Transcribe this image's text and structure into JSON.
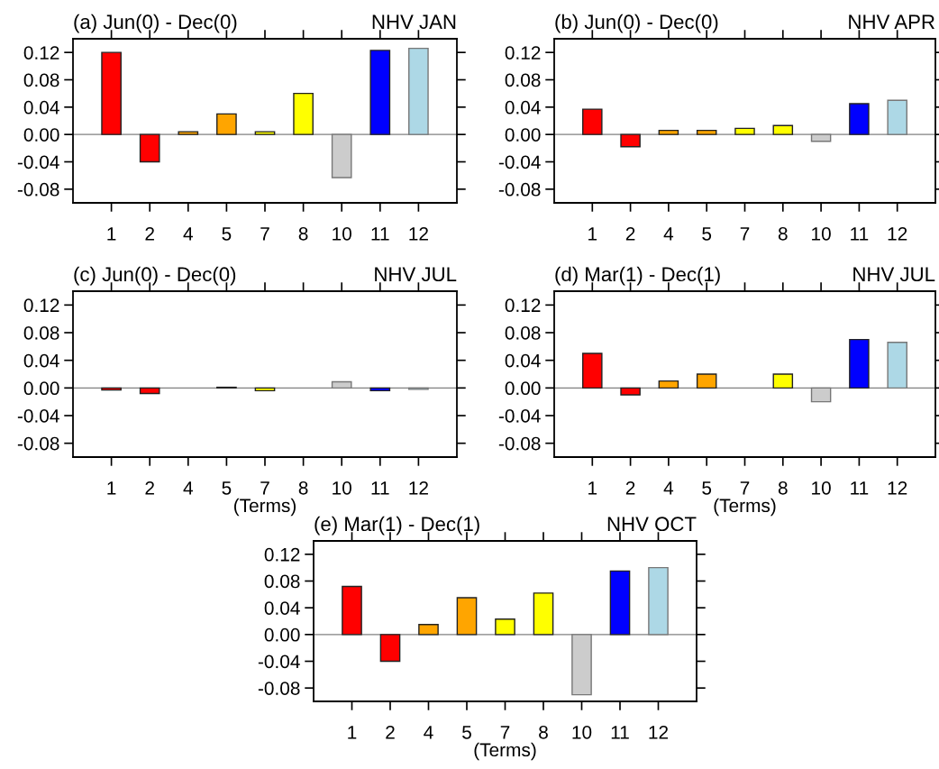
{
  "chart_data": [
    {
      "type": "bar",
      "title": "(a) Jun(0) - Dec(0)",
      "subtitle": "NHV JAN",
      "categories": [
        "1",
        "2",
        "4",
        "5",
        "7",
        "8",
        "10",
        "11",
        "12"
      ],
      "values": [
        0.12,
        -0.04,
        0.004,
        0.03,
        0.004,
        0.06,
        -0.063,
        0.123,
        0.126
      ],
      "colors": [
        "#ff0000",
        "#ff0000",
        "#ffa500",
        "#ffa500",
        "#ffff00",
        "#ffff00",
        "#cccccc",
        "#0000ff",
        "#add8e6"
      ],
      "ylim": [
        -0.1,
        0.14
      ],
      "yticks": [
        {
          "value": -0.08,
          "label": "-0.08"
        },
        {
          "value": -0.04,
          "label": "-0.04"
        },
        {
          "value": 0,
          "label": "0.00"
        },
        {
          "value": 0.04,
          "label": "0.04"
        },
        {
          "value": 0.08,
          "label": "0.08"
        },
        {
          "value": 0.12,
          "label": "0.12"
        }
      ],
      "ref_lines": [
        {
          "axis": "y",
          "value": 0,
          "color": "#808080"
        }
      ]
    },
    {
      "type": "bar",
      "title": "(b) Jun(0) - Dec(0)",
      "subtitle": "NHV APR",
      "categories": [
        "1",
        "2",
        "4",
        "5",
        "7",
        "8",
        "10",
        "11",
        "12"
      ],
      "values": [
        0.037,
        -0.018,
        0.006,
        0.006,
        0.009,
        0.013,
        -0.01,
        0.045,
        0.05
      ],
      "colors": [
        "#ff0000",
        "#ff0000",
        "#ffa500",
        "#ffa500",
        "#ffff00",
        "#ffff00",
        "#cccccc",
        "#0000ff",
        "#add8e6"
      ],
      "ylim": [
        -0.1,
        0.14
      ],
      "yticks": [
        {
          "value": -0.08,
          "label": "-0.08"
        },
        {
          "value": -0.04,
          "label": "-0.04"
        },
        {
          "value": 0,
          "label": "0.00"
        },
        {
          "value": 0.04,
          "label": "0.04"
        },
        {
          "value": 0.08,
          "label": "0.08"
        },
        {
          "value": 0.12,
          "label": "0.12"
        }
      ],
      "ref_lines": [
        {
          "axis": "y",
          "value": 0,
          "color": "#808080"
        }
      ]
    },
    {
      "type": "bar",
      "title": "(c) Jun(0) - Dec(0)",
      "subtitle": "NHV JUL",
      "xlabel": "(Terms)",
      "categories": [
        "1",
        "2",
        "4",
        "5",
        "7",
        "8",
        "10",
        "11",
        "12"
      ],
      "values": [
        -0.003,
        -0.008,
        null,
        0.001,
        -0.004,
        null,
        0.009,
        -0.004,
        -0.002
      ],
      "colors": [
        "#ff0000",
        "#ff0000",
        "#ffa500",
        "#ffa500",
        "#ffff00",
        "#ffff00",
        "#cccccc",
        "#0000ff",
        "#add8e6"
      ],
      "ylim": [
        -0.1,
        0.14
      ],
      "yticks": [
        {
          "value": -0.08,
          "label": "-0.08"
        },
        {
          "value": -0.04,
          "label": "-0.04"
        },
        {
          "value": 0,
          "label": "0.00"
        },
        {
          "value": 0.04,
          "label": "0.04"
        },
        {
          "value": 0.08,
          "label": "0.08"
        },
        {
          "value": 0.12,
          "label": "0.12"
        }
      ],
      "ref_lines": [
        {
          "axis": "y",
          "value": 0,
          "color": "#808080"
        }
      ]
    },
    {
      "type": "bar",
      "title": "(d) Mar(1) - Dec(1)",
      "subtitle": "NHV JUL",
      "xlabel": "(Terms)",
      "categories": [
        "1",
        "2",
        "4",
        "5",
        "7",
        "8",
        "10",
        "11",
        "12"
      ],
      "values": [
        0.05,
        -0.01,
        0.01,
        0.02,
        null,
        0.02,
        -0.02,
        0.07,
        0.066
      ],
      "colors": [
        "#ff0000",
        "#ff0000",
        "#ffa500",
        "#ffa500",
        "#ffff00",
        "#ffff00",
        "#cccccc",
        "#0000ff",
        "#add8e6"
      ],
      "ylim": [
        -0.1,
        0.14
      ],
      "yticks": [
        {
          "value": -0.08,
          "label": "-0.08"
        },
        {
          "value": -0.04,
          "label": "-0.04"
        },
        {
          "value": 0,
          "label": "0.00"
        },
        {
          "value": 0.04,
          "label": "0.04"
        },
        {
          "value": 0.08,
          "label": "0.08"
        },
        {
          "value": 0.12,
          "label": "0.12"
        }
      ],
      "ref_lines": [
        {
          "axis": "y",
          "value": 0,
          "color": "#808080"
        }
      ]
    },
    {
      "type": "bar",
      "title": "(e) Mar(1) - Dec(1)",
      "subtitle": "NHV OCT",
      "xlabel": "(Terms)",
      "categories": [
        "1",
        "2",
        "4",
        "5",
        "7",
        "8",
        "10",
        "11",
        "12"
      ],
      "values": [
        0.072,
        -0.04,
        0.015,
        0.055,
        0.023,
        0.062,
        -0.09,
        0.095,
        0.1
      ],
      "colors": [
        "#ff0000",
        "#ff0000",
        "#ffa500",
        "#ffa500",
        "#ffff00",
        "#ffff00",
        "#cccccc",
        "#0000ff",
        "#add8e6"
      ],
      "ylim": [
        -0.1,
        0.14
      ],
      "yticks": [
        {
          "value": -0.08,
          "label": "-0.08"
        },
        {
          "value": -0.04,
          "label": "-0.04"
        },
        {
          "value": 0,
          "label": "0.00"
        },
        {
          "value": 0.04,
          "label": "0.04"
        },
        {
          "value": 0.08,
          "label": "0.08"
        },
        {
          "value": 0.12,
          "label": "0.12"
        }
      ],
      "ref_lines": [
        {
          "axis": "y",
          "value": 0,
          "color": "#808080"
        }
      ]
    }
  ]
}
